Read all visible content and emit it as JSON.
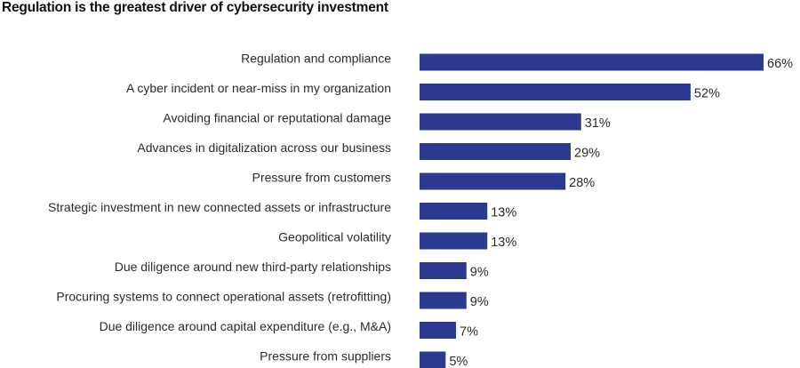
{
  "chart_data": {
    "type": "bar",
    "orientation": "horizontal",
    "title": "Regulation is the greatest driver of cybersecurity investment",
    "xlabel": "",
    "ylabel": "",
    "value_suffix": "%",
    "xlim": [
      0,
      66
    ],
    "grid": false,
    "legend": "none",
    "bar_color": "#2b3990",
    "categories": [
      "Regulation and compliance",
      "A cyber incident or near-miss in my organization",
      "Avoiding financial or reputational damage",
      "Advances in digitalization across our business",
      "Pressure from customers",
      "Strategic investment in new connected assets or infrastructure",
      "Geopolitical volatility",
      "Due diligence around new third-party relationships",
      "Procuring systems to connect operational assets (retrofitting)",
      "Due diligence around capital expenditure (e.g., M&A)",
      "Pressure from suppliers"
    ],
    "values": [
      66,
      52,
      31,
      29,
      28,
      13,
      13,
      9,
      9,
      7,
      5
    ],
    "value_labels": [
      "66%",
      "52%",
      "31%",
      "29%",
      "28%",
      "13%",
      "13%",
      "9%",
      "9%",
      "7%",
      "5%"
    ]
  }
}
